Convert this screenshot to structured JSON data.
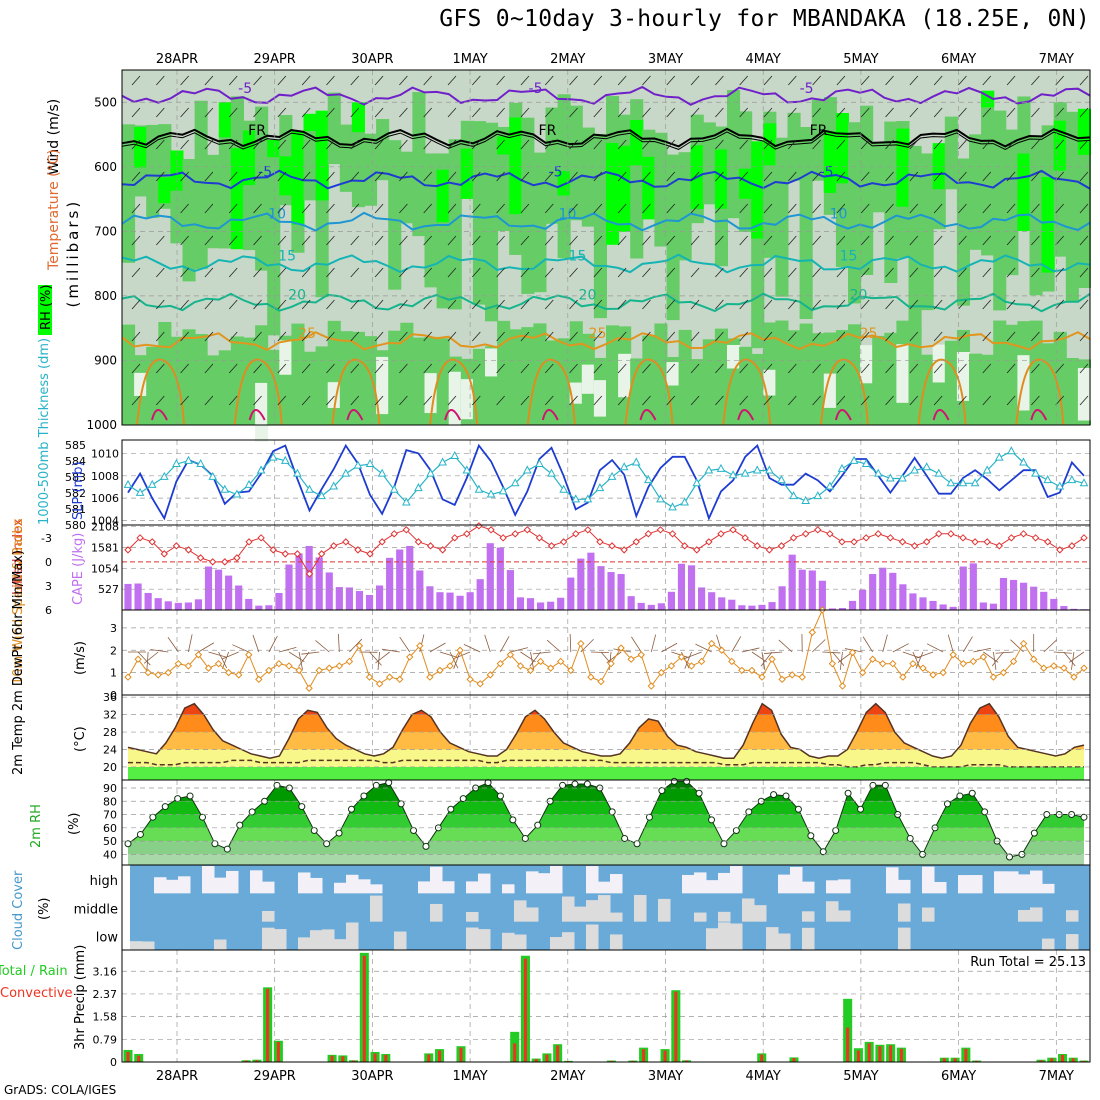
{
  "title": "GFS 0~10day 3-hourly for MBANDAKA (18.25E, 0N)",
  "footer": "GrADS: COLA/IGES",
  "colors": {
    "rh_dark": "#00ff00",
    "rh_mid": "#66cc66",
    "rh_light": "#a8d8a8",
    "rh_pale": "#c8d8c8",
    "rh_white": "#e8f4e8",
    "slp": "#1e3cd2",
    "thickness": "#28b4c8",
    "lifted": "#e03232",
    "cape": "#c070f0",
    "wind10": "#e08c1e",
    "cloud": "#6aaad8",
    "total_rain": "#22cc22",
    "convective": "#ee3322"
  },
  "chart_data": [
    {
      "id": "upper",
      "type": "heatmap",
      "ylabel": "(millibars)",
      "side_labels": [
        "Wind (m/s)",
        "Temperature (°C)",
        "RH (%)"
      ],
      "y_ticks": [
        500,
        600,
        700,
        800,
        900,
        1000
      ],
      "ylim": [
        1000,
        450
      ],
      "x_ticks": [
        "28APR",
        "29APR",
        "30APR",
        "1MAY",
        "2MAY",
        "3MAY",
        "4MAY",
        "5MAY",
        "6MAY",
        "7MAY"
      ],
      "isotherms": [
        {
          "label": "-5",
          "level_mb": 490,
          "color": "#7020c8"
        },
        {
          "label": "FR",
          "level_mb": 555,
          "color": "#000000"
        },
        {
          "label": "-5",
          "level_mb": 620,
          "color": "#1e3cd2"
        },
        {
          "label": "10",
          "level_mb": 685,
          "color": "#1e96d2"
        },
        {
          "label": "15",
          "level_mb": 750,
          "color": "#14b4b4"
        },
        {
          "label": "20",
          "level_mb": 810,
          "color": "#14b48c"
        },
        {
          "label": "25",
          "level_mb": 870,
          "color": "#e0961e"
        }
      ]
    },
    {
      "id": "slp",
      "type": "line",
      "left_label": "1000-500mb Thickness (dm)",
      "right_label": "SLP (mb)",
      "left_ticks": [
        580,
        581,
        582,
        583,
        584,
        585
      ],
      "right_ticks": [
        1004,
        1006,
        1008,
        1010
      ],
      "ylim_left": [
        580,
        585.3
      ],
      "ylim_right": [
        1003.6,
        1011.2
      ],
      "series": [
        {
          "name": "SLP",
          "values": [
            1006.5,
            1008.2,
            1006.0,
            1004.2,
            1007.5,
            1009.4,
            1009.0,
            1008.0,
            1005.5,
            1006.5,
            1006.6,
            1008.2,
            1010.2,
            1010.7,
            1007.7,
            1004.9,
            1006.8,
            1008.6,
            1010.7,
            1009.1,
            1006.3,
            1004.6,
            1007.0,
            1010.3,
            1010.0,
            1008.5,
            1005.9,
            1005.4,
            1007.8,
            1010.7,
            1009.3,
            1007.0,
            1004.5,
            1006.6,
            1009.5,
            1010.5,
            1008.0,
            1005.0,
            1005.6,
            1008.5,
            1009.4,
            1008.1,
            1004.4,
            1007.0,
            1008.7,
            1009.7,
            1009.7,
            1007.6,
            1004.2,
            1006.6,
            1007.6,
            1009.7,
            1010.7,
            1007.8,
            1007.2,
            1007.2,
            1008.2,
            1007.6,
            1006.6,
            1008.0,
            1009.5,
            1009.5,
            1008.0,
            1006.5,
            1008.0,
            1009.6,
            1008.0,
            1006.4,
            1006.4,
            1007.8,
            1008.5,
            1007.7,
            1006.7,
            1007.6,
            1008.5,
            1008.5,
            1006.1,
            1006.5,
            1009.2,
            1008.0
          ]
        },
        {
          "name": "Thickness",
          "values": [
            582.5,
            582.0,
            582.5,
            583.0,
            583.8,
            584.0,
            583.8,
            583.0,
            582.2,
            581.9,
            582.5,
            583.4,
            584.2,
            584.0,
            583.2,
            582.2,
            581.8,
            582.4,
            583.2,
            583.7,
            583.8,
            583.2,
            582.2,
            581.4,
            582.3,
            583.2,
            583.9,
            584.3,
            583.4,
            582.2,
            581.9,
            582.1,
            582.6,
            583.4,
            583.8,
            583.2,
            582.2,
            581.6,
            581.6,
            582.3,
            583.0,
            583.6,
            583.9,
            582.8,
            581.6,
            581.1,
            581.4,
            582.6,
            583.4,
            583.5,
            583.1,
            583.2,
            583.4,
            583.4,
            582.8,
            581.8,
            581.5,
            581.8,
            582.4,
            583.5,
            584.0,
            583.8,
            583.2,
            582.9,
            582.9,
            583.4,
            583.6,
            583.2,
            582.6,
            582.6,
            582.6,
            583.4,
            584.2,
            584.6,
            583.9,
            583.2,
            582.8,
            582.4,
            582.8,
            582.6
          ]
        }
      ]
    },
    {
      "id": "cape",
      "type": "bar",
      "left_label": "Lifted Index",
      "right_label": "CAPE (J/kg)",
      "left_ticks": [
        -3,
        0,
        3,
        6
      ],
      "right_ticks": [
        527,
        1054,
        1581,
        2108
      ],
      "series": [
        {
          "name": "Lifted Index",
          "values": [
            -1.5,
            -3.0,
            -2.5,
            -1.0,
            -2.0,
            -1.5,
            -0.5,
            0.0,
            0.0,
            -0.5,
            -2.5,
            -3.0,
            -1.5,
            -1.0,
            -1.0,
            1.5,
            -1.0,
            -2.0,
            -2.5,
            -1.5,
            -1.0,
            -2.5,
            -3.5,
            -4.0,
            -2.5,
            -2.0,
            -1.5,
            -3.0,
            -3.5,
            -4.5,
            -4.0,
            -3.0,
            -3.5,
            -4.0,
            -3.0,
            -2.0,
            -2.5,
            -3.5,
            -4.0,
            -2.5,
            -2.0,
            -1.5,
            -2.5,
            -3.5,
            -4.0,
            -3.5,
            -2.0,
            -1.5,
            -2.5,
            -3.5,
            -4.0,
            -3.0,
            -2.0,
            -1.5,
            -2.0,
            -3.0,
            -3.5,
            -4.0,
            -3.5,
            -2.5,
            -2.5,
            -3.0,
            -3.5,
            -3.0,
            -2.5,
            -2.0,
            -2.5,
            -3.5,
            -3.5,
            -3.0,
            -2.5,
            -2.5,
            -2.0,
            -3.0,
            -3.5,
            -3.0,
            -2.5,
            -1.5,
            -2.0,
            -3.0
          ]
        },
        {
          "name": "CAPE",
          "values": [
            660,
            670,
            430,
            300,
            220,
            180,
            190,
            270,
            1100,
            1020,
            870,
            620,
            280,
            110,
            120,
            430,
            1150,
            1430,
            1620,
            1330,
            950,
            580,
            570,
            480,
            380,
            620,
            1320,
            1530,
            1620,
            1000,
            600,
            450,
            440,
            360,
            450,
            780,
            1690,
            1580,
            1010,
            320,
            300,
            190,
            210,
            310,
            820,
            1300,
            1450,
            1110,
            960,
            910,
            350,
            180,
            130,
            170,
            460,
            1170,
            1130,
            570,
            450,
            320,
            260,
            120,
            110,
            130,
            200,
            600,
            1400,
            1020,
            1000,
            740,
            40,
            50,
            230,
            510,
            910,
            1070,
            940,
            650,
            420,
            320,
            230,
            140,
            80,
            1100,
            1180,
            190,
            160,
            810,
            760,
            690,
            590,
            460,
            280,
            100,
            30,
            20
          ]
        }
      ]
    },
    {
      "id": "wind10",
      "type": "line",
      "left_label": "10m Wind Speed & Barbs",
      "unit": "(m/s)",
      "y_ticks": [
        0,
        1,
        2,
        3
      ],
      "ylim": [
        0,
        3.8
      ],
      "values": [
        0.8,
        1.6,
        1.0,
        0.9,
        1.0,
        1.4,
        1.3,
        1.8,
        1.2,
        1.4,
        1.0,
        0.9,
        1.8,
        0.7,
        1.1,
        1.4,
        1.3,
        1.1,
        0.3,
        1.1,
        1.2,
        1.3,
        1.5,
        2.2,
        0.8,
        0.5,
        0.8,
        0.7,
        1.7,
        2.2,
        0.8,
        1.1,
        1.3,
        2.0,
        0.7,
        0.5,
        0.9,
        1.4,
        1.8,
        1.3,
        1.1,
        1.5,
        1.2,
        1.5,
        1.1,
        2.3,
        0.8,
        0.6,
        1.4,
        2.1,
        1.6,
        1.8,
        0.4,
        1.0,
        1.3,
        1.7,
        1.3,
        1.5,
        2.3,
        2.0,
        1.5,
        1.1,
        1.1,
        0.8,
        1.6,
        0.7,
        0.9,
        0.8,
        2.8,
        3.8,
        1.4,
        0.4,
        1.9,
        1.0,
        1.6,
        1.4,
        1.4,
        0.8,
        1.4,
        1.2,
        0.9,
        1.0,
        1.8,
        1.4,
        1.5,
        1.7,
        0.8,
        1.0,
        1.5,
        2.3,
        1.6,
        1.2,
        1.3,
        1.2,
        0.8,
        1.2
      ]
    },
    {
      "id": "temp2m",
      "type": "area",
      "left_label": "2m Temp 2m DewPt (6hr Min/Max)",
      "unit": "(°C)",
      "y_ticks": [
        20,
        24,
        28,
        32,
        36
      ],
      "ylim": [
        17,
        36.5
      ],
      "temperature": [
        24.5,
        24.0,
        23.5,
        23.0,
        25.5,
        29.0,
        33.5,
        34.5,
        32.0,
        28.5,
        26.0,
        25.0,
        24.0,
        23.0,
        22.5,
        22.0,
        22.5,
        26.5,
        31.0,
        33.0,
        32.5,
        29.0,
        26.5,
        25.0,
        24.0,
        23.0,
        22.5,
        23.0,
        24.5,
        28.5,
        32.0,
        33.0,
        31.5,
        28.0,
        25.5,
        24.5,
        23.5,
        23.0,
        22.5,
        22.5,
        24.0,
        27.5,
        31.5,
        33.0,
        31.0,
        28.0,
        25.5,
        24.5,
        23.5,
        23.0,
        22.5,
        22.5,
        23.0,
        25.5,
        29.0,
        31.0,
        30.5,
        27.0,
        25.0,
        24.5,
        23.5,
        23.0,
        22.5,
        22.0,
        22.0,
        25.0,
        30.0,
        34.5,
        33.0,
        27.5,
        24.5,
        24.0,
        22.5,
        22.0,
        22.5,
        22.5,
        24.0,
        28.0,
        32.5,
        34.5,
        32.5,
        28.0,
        25.5,
        24.5,
        23.5,
        22.5,
        22.0,
        22.5,
        25.0,
        30.0,
        33.5,
        34.5,
        31.5,
        27.0,
        24.5,
        24.0,
        23.5,
        23.0,
        22.5,
        23.0,
        24.5,
        25.0
      ],
      "dewpoint": [
        21.0,
        21.0,
        21.0,
        20.5,
        20.5,
        20.5,
        21.0,
        21.0,
        21.0,
        21.0,
        21.0,
        21.5,
        21.5,
        21.5,
        21.0,
        21.0,
        21.0,
        21.0,
        21.0,
        21.5,
        21.5,
        21.5,
        21.5,
        21.5,
        21.5,
        21.5,
        21.5,
        21.0,
        21.0,
        21.5,
        21.5,
        21.5,
        21.5,
        21.5,
        21.5,
        21.5,
        21.5,
        21.5,
        21.0,
        21.0,
        21.5,
        21.5,
        21.5,
        21.5,
        21.5,
        21.5,
        21.5,
        21.5,
        21.5,
        21.5,
        21.5,
        21.0,
        21.0,
        21.0,
        21.0,
        21.0,
        21.0,
        21.0,
        21.0,
        21.0,
        21.0,
        21.0,
        21.0,
        20.5,
        20.5,
        20.5,
        21.0,
        21.0,
        21.0,
        21.0,
        21.0,
        21.0,
        21.0,
        21.0,
        20.5,
        20.5,
        20.0,
        20.0,
        20.5,
        20.5,
        21.0,
        21.0,
        21.0,
        21.0,
        20.5,
        20.0,
        20.0,
        20.0,
        20.0,
        20.5,
        20.5,
        20.5,
        20.5,
        20.0,
        20.0,
        20.0,
        20.0,
        20.0,
        20.0,
        20.0,
        20.0,
        20.0
      ]
    },
    {
      "id": "rh2m",
      "type": "area",
      "left_label": "2m RH",
      "unit": "(%)",
      "y_ticks": [
        40,
        50,
        60,
        70,
        80,
        90
      ],
      "ylim": [
        32,
        96
      ],
      "values": [
        48,
        55,
        68,
        76,
        82,
        84,
        68,
        48,
        44,
        62,
        72,
        80,
        92,
        90,
        76,
        58,
        48,
        56,
        74,
        84,
        92,
        94,
        78,
        58,
        46,
        60,
        74,
        82,
        90,
        94,
        84,
        66,
        52,
        62,
        80,
        92,
        93,
        93,
        90,
        72,
        52,
        48,
        68,
        88,
        95,
        95,
        86,
        66,
        48,
        58,
        72,
        80,
        85,
        84,
        74,
        54,
        42,
        58,
        86,
        74,
        92,
        92,
        70,
        52,
        40,
        60,
        78,
        84,
        86,
        72,
        50,
        38,
        40,
        56,
        70,
        70,
        70,
        68
      ]
    },
    {
      "id": "cloud",
      "type": "heatmap",
      "left_label": "Cloud Cover",
      "unit": "(%)",
      "rows": [
        "high",
        "middle",
        "low"
      ]
    },
    {
      "id": "precip",
      "type": "bar",
      "left_label": "Total / Rain Convective",
      "unit": "3hr Precip (mm)",
      "y_ticks": [
        0,
        0.79,
        1.58,
        2.37,
        3.16
      ],
      "ylim": [
        0,
        3.9
      ],
      "annotation": "Run Total = 25.13",
      "series": [
        {
          "name": "Total",
          "values": [
            0.42,
            0.28,
            0,
            0,
            0,
            0,
            0,
            0,
            0,
            0,
            0,
            0.06,
            0.08,
            2.6,
            0.74,
            0,
            0,
            0,
            0,
            0.25,
            0.23,
            0.06,
            3.8,
            0.35,
            0.28,
            0,
            0,
            0,
            0.3,
            0.45,
            0,
            0.55,
            0,
            0,
            0,
            0,
            1.05,
            3.7,
            0.12,
            0.3,
            0.62,
            0.04,
            0,
            0,
            0,
            0.05,
            0,
            0.05,
            0.5,
            0,
            0.45,
            2.5,
            0.06,
            0,
            0,
            0,
            0,
            0,
            0,
            0.3,
            0,
            0,
            0.16,
            0,
            0,
            0,
            0,
            2.2,
            0.48,
            0.7,
            0.6,
            0.62,
            0.5,
            0,
            0,
            0,
            0.15,
            0.15,
            0.5,
            0.05,
            0,
            0,
            0,
            0,
            0,
            0.08,
            0.15,
            0.28,
            0.15,
            0.05
          ]
        },
        {
          "name": "Convective",
          "values": [
            0.35,
            0.22,
            0,
            0,
            0,
            0,
            0,
            0,
            0,
            0,
            0,
            0.05,
            0.06,
            2.55,
            0.7,
            0,
            0,
            0,
            0,
            0.22,
            0.2,
            0.05,
            3.7,
            0.3,
            0.25,
            0,
            0,
            0,
            0.26,
            0.4,
            0,
            0.5,
            0,
            0,
            0,
            0,
            0.65,
            3.6,
            0.1,
            0.26,
            0.58,
            0.03,
            0,
            0,
            0,
            0.04,
            0,
            0.04,
            0.45,
            0,
            0.4,
            2.45,
            0.05,
            0,
            0,
            0,
            0,
            0,
            0,
            0.26,
            0,
            0,
            0.14,
            0,
            0,
            0,
            0,
            1.2,
            0.4,
            0.65,
            0.55,
            0.58,
            0.46,
            0,
            0,
            0,
            0.13,
            0.13,
            0.46,
            0.04,
            0,
            0,
            0,
            0,
            0,
            0.06,
            0.13,
            0.25,
            0.13,
            0.04
          ]
        }
      ]
    }
  ]
}
